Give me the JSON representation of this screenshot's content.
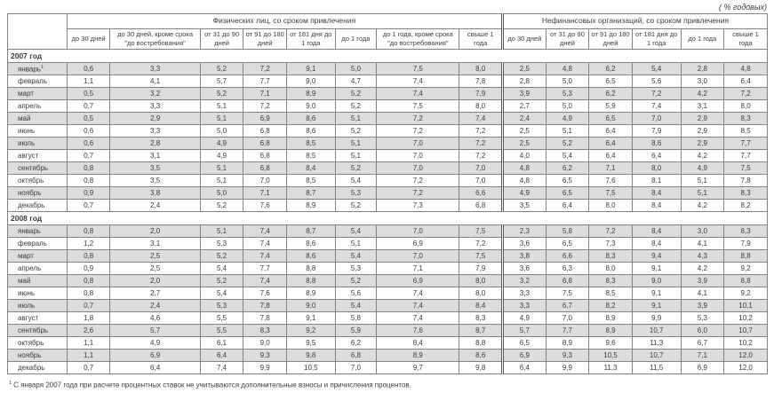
{
  "page": {
    "units_note": "( % годовых)"
  },
  "table": {
    "group_headers": [
      {
        "label": "Физических лиц, со сроком привлечения",
        "colspan": 8
      },
      {
        "label": "Нефинансовых организаций, со сроком привлечения",
        "colspan": 6
      }
    ],
    "columns": [
      "до 30 дней",
      "до 30 дней, кроме срока \"до востребования\"",
      "от 31 до 90 дней",
      "от 91 до 180 дней",
      "от 181 дня до 1 года",
      "до 1 года",
      "до 1 года, кроме срока \"до востребования\"",
      "свыше 1 года",
      "до 30 дней",
      "от 31 до 90 дней",
      "от 91 до 180 дней",
      "от 181 дня до 1 года",
      "до 1 года",
      "свыше 1 года"
    ],
    "sections": [
      {
        "year": "2007 год",
        "rows": [
          {
            "month": "январь",
            "sup": "1",
            "values": [
              "0,6",
              "3,3",
              "5,2",
              "7,2",
              "9,1",
              "5,0",
              "7,5",
              "8,0",
              "2,5",
              "4,8",
              "6,2",
              "5,4",
              "2,8",
              "4,8"
            ]
          },
          {
            "month": "февраль",
            "values": [
              "1,1",
              "4,1",
              "5,7",
              "7,7",
              "9,0",
              "4,7",
              "7,4",
              "7,8",
              "2,8",
              "5,0",
              "6,5",
              "5,6",
              "3,0",
              "6,4"
            ]
          },
          {
            "month": "март",
            "values": [
              "0,5",
              "3,2",
              "5,2",
              "7,1",
              "8,9",
              "5,2",
              "7,4",
              "7,9",
              "3,9",
              "5,3",
              "6,2",
              "7,2",
              "4,2",
              "7,2"
            ]
          },
          {
            "month": "апрель",
            "values": [
              "0,7",
              "3,3",
              "5,1",
              "7,2",
              "9,0",
              "5,2",
              "7,5",
              "8,0",
              "2,7",
              "5,0",
              "5,9",
              "7,4",
              "3,1",
              "8,0"
            ]
          },
          {
            "month": "май",
            "values": [
              "0,5",
              "2,9",
              "5,1",
              "6,9",
              "8,6",
              "5,1",
              "7,2",
              "7,4",
              "2,4",
              "4,9",
              "6,5",
              "7,0",
              "2,9",
              "8,3"
            ]
          },
          {
            "month": "июнь",
            "values": [
              "0,6",
              "3,3",
              "5,0",
              "6,8",
              "8,6",
              "5,2",
              "7,2",
              "7,2",
              "2,5",
              "5,1",
              "6,4",
              "7,9",
              "2,9",
              "8,5"
            ]
          },
          {
            "month": "июль",
            "values": [
              "0,6",
              "2,8",
              "4,9",
              "6,8",
              "8,5",
              "5,1",
              "7,0",
              "7,2",
              "2,5",
              "5,2",
              "6,4",
              "8,6",
              "2,9",
              "7,7"
            ]
          },
          {
            "month": "август",
            "values": [
              "0,7",
              "3,1",
              "4,9",
              "6,8",
              "8,5",
              "5,1",
              "7,0",
              "7,2",
              "4,0",
              "5,4",
              "6,4",
              "6,4",
              "4,2",
              "7,7"
            ]
          },
          {
            "month": "сентябрь",
            "values": [
              "0,8",
              "3,5",
              "5,1",
              "6,8",
              "8,4",
              "5,2",
              "7,0",
              "7,0",
              "4,8",
              "6,2",
              "7,1",
              "8,0",
              "4,9",
              "7,5"
            ]
          },
          {
            "month": "октябрь",
            "values": [
              "0,8",
              "3,5",
              "5,1",
              "7,0",
              "8,5",
              "5,4",
              "7,2",
              "7,0",
              "4,8",
              "6,5",
              "7,6",
              "8,1",
              "5,1",
              "7,8"
            ]
          },
          {
            "month": "ноябрь",
            "values": [
              "0,9",
              "3,8",
              "5,0",
              "7,1",
              "8,7",
              "5,3",
              "7,2",
              "6,6",
              "4,9",
              "6,5",
              "7,5",
              "8,4",
              "5,1",
              "8,3"
            ]
          },
          {
            "month": "декабрь",
            "values": [
              "0,7",
              "2,4",
              "5,2",
              "7,6",
              "8,9",
              "5,2",
              "7,3",
              "6,8",
              "3,5",
              "6,4",
              "8,0",
              "8,4",
              "4,2",
              "8,2"
            ]
          }
        ]
      },
      {
        "year": "2008 год",
        "rows": [
          {
            "month": "январь",
            "values": [
              "0,8",
              "2,0",
              "5,1",
              "7,4",
              "8,7",
              "5,4",
              "7,0",
              "7,5",
              "2,3",
              "5,8",
              "7,2",
              "8,4",
              "3,0",
              "8,3"
            ]
          },
          {
            "month": "февраль",
            "values": [
              "1,2",
              "3,1",
              "5,3",
              "7,4",
              "8,6",
              "5,1",
              "6,9",
              "7,2",
              "3,6",
              "6,5",
              "7,3",
              "8,4",
              "4,1",
              "7,9"
            ]
          },
          {
            "month": "март",
            "values": [
              "0,8",
              "2,5",
              "5,2",
              "7,4",
              "8,6",
              "5,4",
              "7,0",
              "7,5",
              "3,8",
              "6,6",
              "8,3",
              "9,4",
              "4,3",
              "8,8"
            ]
          },
          {
            "month": "апрель",
            "values": [
              "0,9",
              "2,5",
              "5,4",
              "7,7",
              "8,8",
              "5,3",
              "7,1",
              "7,9",
              "3,6",
              "6,3",
              "8,0",
              "9,1",
              "4,2",
              "9,2"
            ]
          },
          {
            "month": "май",
            "values": [
              "0,8",
              "2,0",
              "5,2",
              "7,4",
              "8,8",
              "5,2",
              "6,9",
              "8,0",
              "3,2",
              "6,8",
              "8,3",
              "9,0",
              "3,9",
              "8,8"
            ]
          },
          {
            "month": "июнь",
            "values": [
              "0,8",
              "2,7",
              "5,4",
              "7,6",
              "8,9",
              "5,6",
              "7,4",
              "8,0",
              "3,3",
              "7,5",
              "8,5",
              "9,1",
              "4,1",
              "9,2"
            ]
          },
          {
            "month": "июль",
            "values": [
              "0,7",
              "2,4",
              "5,3",
              "7,8",
              "9,0",
              "5,4",
              "7,4",
              "8,4",
              "3,3",
              "6,7",
              "8,2",
              "9,1",
              "3,9",
              "10,1"
            ]
          },
          {
            "month": "август",
            "values": [
              "1,8",
              "4,6",
              "5,5",
              "7,8",
              "9,1",
              "5,8",
              "7,4",
              "8,3",
              "4,9",
              "7,0",
              "8,9",
              "9,9",
              "5,3",
              "10,2"
            ]
          },
          {
            "month": "сентябрь",
            "values": [
              "2,6",
              "5,7",
              "5,5",
              "8,3",
              "9,2",
              "5,9",
              "7,6",
              "8,7",
              "5,7",
              "7,7",
              "8,9",
              "10,7",
              "6,0",
              "10,7"
            ]
          },
          {
            "month": "октябрь",
            "values": [
              "1,1",
              "4,9",
              "6,1",
              "9,0",
              "9,5",
              "6,2",
              "8,4",
              "8,8",
              "6,5",
              "8,9",
              "9,6",
              "11,3",
              "6,7",
              "10,2"
            ]
          },
          {
            "month": "ноябрь",
            "values": [
              "1,1",
              "6,9",
              "6,4",
              "9,3",
              "9,8",
              "6,8",
              "8,9",
              "8,6",
              "6,9",
              "9,3",
              "10,5",
              "10,7",
              "7,1",
              "12,0"
            ]
          },
          {
            "month": "декабрь",
            "values": [
              "0,7",
              "6,4",
              "7,4",
              "9,9",
              "10,5",
              "7,0",
              "9,7",
              "9,8",
              "6,4",
              "9,9",
              "11,3",
              "11,5",
              "6,9",
              "12,0"
            ]
          }
        ]
      }
    ]
  },
  "footnote": {
    "sup": "1",
    "text": "С января 2007 года при расчете процентных ставок не учитываются дополнительные взносы и причисления процентов."
  }
}
